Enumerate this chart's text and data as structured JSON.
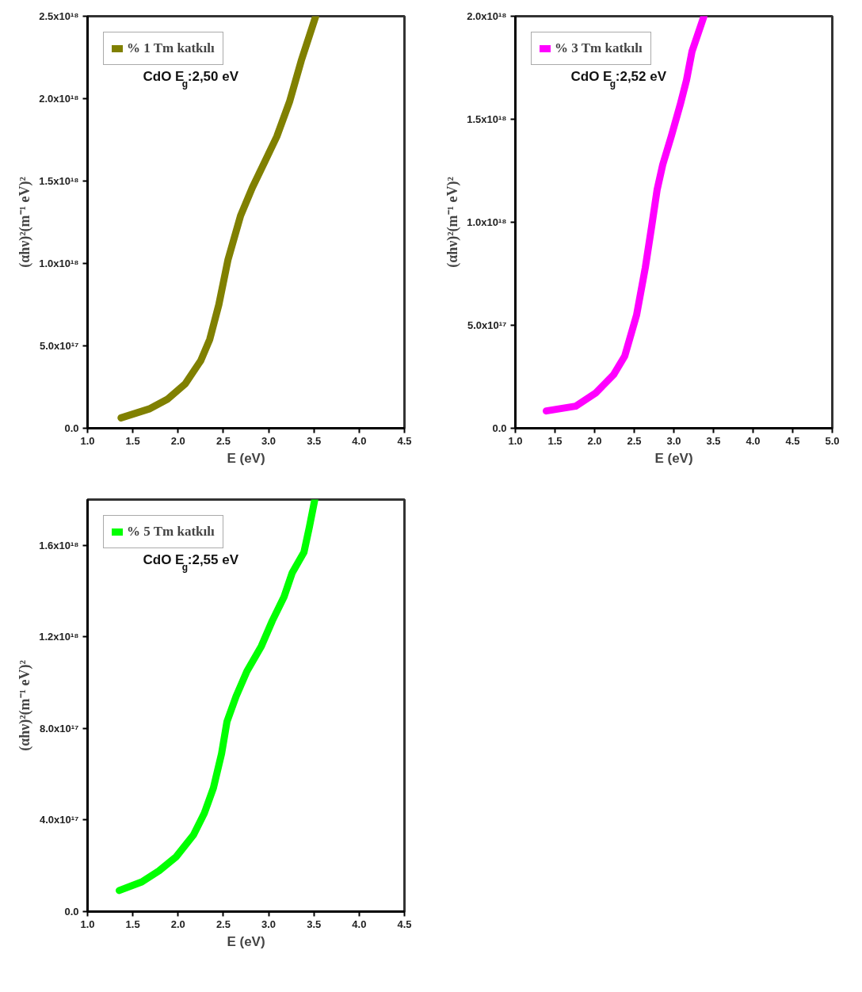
{
  "chart_data": [
    {
      "type": "line",
      "xlabel": "E (eV)",
      "ylabel": "(αhν)²(m⁻¹ eV)²",
      "legend": "top left",
      "annotations": [
        "CdO E$_{g}$:2,50 eV"
      ],
      "xlim": [
        1.0,
        4.5
      ],
      "xticks": [
        {
          "value": 1.0,
          "label": "1.0"
        },
        1.5,
        {
          "value": 2.0,
          "label": "2.0"
        },
        2.5,
        {
          "value": 3.0,
          "label": "3.0"
        },
        3.5,
        {
          "value": 4.0,
          "label": "4.0"
        },
        4.5
      ],
      "ylim": [
        0,
        2.5e+18
      ],
      "yticks": [
        {
          "value": 0,
          "label": "0.0"
        },
        {
          "value": 5e+17,
          "label": "5.0x10¹⁷"
        },
        {
          "value": 1e+18,
          "label": "1.0x10¹⁸"
        },
        {
          "value": 1.5e+18,
          "label": "1.5x10¹⁸"
        },
        {
          "value": 2e+18,
          "label": "2.0x10¹⁸"
        },
        {
          "value": 2.5e+18,
          "label": "2.5x10¹⁸"
        }
      ],
      "series": [
        {
          "name": "% 1 Tm katkılı",
          "color": "#808000",
          "x": [
            1.37,
            1.68,
            1.88,
            2.08,
            2.25,
            2.35,
            2.45,
            2.55,
            2.69,
            2.82,
            2.96,
            3.09,
            3.23,
            3.36,
            3.52
          ],
          "values": [
            6.3e+16,
            1.17e+17,
            1.75e+17,
            2.7e+17,
            4.1e+17,
            5.4e+17,
            7.5e+17,
            1.02e+18,
            1.29e+18,
            1.46e+18,
            1.62e+18,
            1.77e+18,
            1.98e+18,
            2.23e+18,
            2.5e+18
          ]
        }
      ]
    },
    {
      "type": "line",
      "xlabel": "E (eV)",
      "ylabel": "(αhν)²(m⁻¹ eV)²",
      "legend": "top left",
      "annotations": [
        "CdO E$_{g}$:2,52 eV"
      ],
      "xlim": [
        1.0,
        5.0
      ],
      "xticks": [
        {
          "value": 1.0,
          "label": "1.0"
        },
        1.5,
        {
          "value": 2.0,
          "label": "2.0"
        },
        2.5,
        {
          "value": 3.0,
          "label": "3.0"
        },
        3.5,
        {
          "value": 4.0,
          "label": "4.0"
        },
        4.5,
        {
          "value": 5.0,
          "label": "5.0"
        }
      ],
      "ylim": [
        0,
        2e+18
      ],
      "yticks": [
        {
          "value": 0,
          "label": "0.0"
        },
        {
          "value": 5e+17,
          "label": "5.0x10¹⁷"
        },
        {
          "value": 1e+18,
          "label": "1.0x10¹⁸"
        },
        {
          "value": 1.5e+18,
          "label": "1.5x10¹⁸"
        },
        {
          "value": 2e+18,
          "label": "2.0x10¹⁸"
        }
      ],
      "series": [
        {
          "name": "% 3 Tm katkılı",
          "color": "#ff00ff",
          "x": [
            1.39,
            1.76,
            2.01,
            2.24,
            2.38,
            2.53,
            2.64,
            2.72,
            2.79,
            2.86,
            2.97,
            3.08,
            3.16,
            3.23,
            3.38
          ],
          "values": [
            8.4e+16,
            1.07e+17,
            1.7e+17,
            2.6e+17,
            3.5e+17,
            5.5e+17,
            7.8e+17,
            9.8e+17,
            1.16e+18,
            1.28e+18,
            1.42e+18,
            1.57e+18,
            1.69e+18,
            1.83e+18,
            2e+18
          ]
        }
      ]
    },
    {
      "type": "line",
      "xlabel": "E (eV)",
      "ylabel": "(αhν)²(m⁻¹ eV)²",
      "legend": "top left",
      "annotations": [
        "CdO E$_{g}$:2,55 eV"
      ],
      "xlim": [
        1.0,
        4.5
      ],
      "xticks": [
        {
          "value": 1.0,
          "label": "1.0"
        },
        1.5,
        {
          "value": 2.0,
          "label": "2.0"
        },
        2.5,
        {
          "value": 3.0,
          "label": "3.0"
        },
        3.5,
        {
          "value": 4.0,
          "label": "4.0"
        },
        4.5
      ],
      "ylim": [
        0,
        1.8e+18
      ],
      "yticks": [
        {
          "value": 0,
          "label": "0.0"
        },
        {
          "value": 4e+17,
          "label": "4.0x10¹⁷"
        },
        {
          "value": 8e+17,
          "label": "8.0x10¹⁷"
        },
        {
          "value": 1.2e+18,
          "label": "1.2x10¹⁸"
        },
        {
          "value": 1.6e+18,
          "label": "1.6x10¹⁸"
        }
      ],
      "series": [
        {
          "name": "% 5 Tm katkılı",
          "color": "#00ff00",
          "x": [
            1.35,
            1.6,
            1.79,
            1.98,
            2.17,
            2.29,
            2.39,
            2.48,
            2.54,
            2.64,
            2.76,
            2.92,
            3.04,
            3.17,
            3.26,
            3.39,
            3.45,
            3.51
          ],
          "values": [
            9.2e+16,
            1.3e+17,
            1.78e+17,
            2.4e+17,
            3.35e+17,
            4.3e+17,
            5.4e+17,
            6.9e+17,
            8.3e+17,
            9.4e+17,
            1.05e+18,
            1.16e+18,
            1.27e+18,
            1.375e+18,
            1.48e+18,
            1.57e+18,
            1.68e+18,
            1.8e+18
          ]
        }
      ]
    }
  ]
}
